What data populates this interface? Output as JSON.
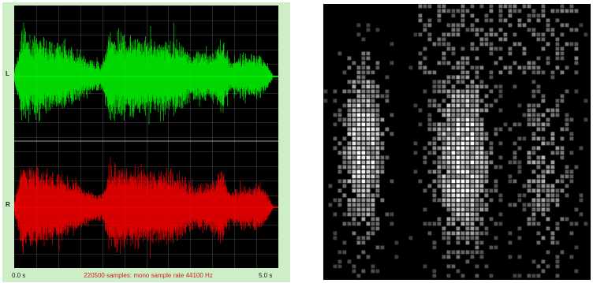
{
  "waveform_view": {
    "channels": {
      "left": {
        "label": "L",
        "color": "#00ff00"
      },
      "right": {
        "label": "R",
        "color": "#ff0000"
      }
    },
    "time_start": "0.0 s",
    "time_end": "5.0 s",
    "status": "220500 samples: mono sample rate 44100 Hz",
    "background_color": "#cdeec6",
    "grid_color": "#444444"
  },
  "spectrogram_view": {
    "background_color": "#000000",
    "cell_color": "#ffffff"
  }
}
